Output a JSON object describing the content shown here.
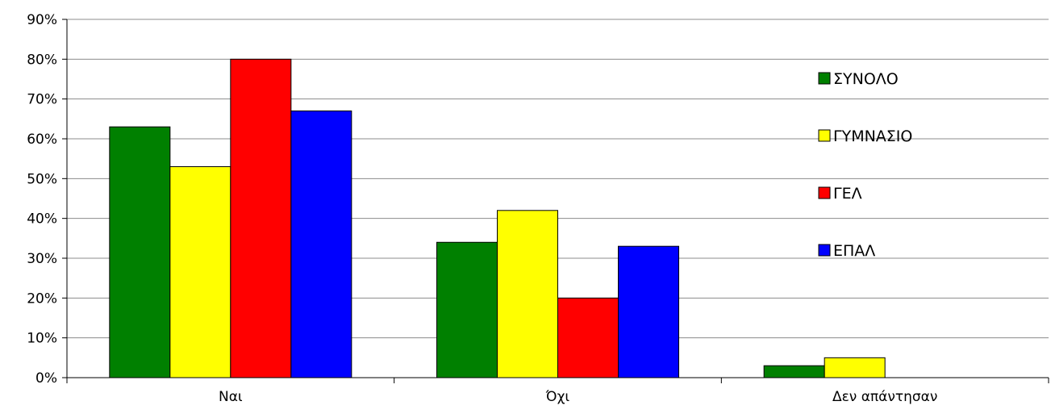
{
  "chart_data": {
    "type": "bar",
    "title": "",
    "xlabel": "",
    "ylabel": "",
    "categories": [
      "Ναι",
      "Όχι",
      "Δεν απάντησαν"
    ],
    "series": [
      {
        "name": "ΣΥΝΟΛΟ",
        "color": "#008000",
        "values": [
          63,
          34,
          3
        ]
      },
      {
        "name": "ΓΥΜΝΑΣΙΟ",
        "color": "#FFFF00",
        "values": [
          53,
          42,
          5
        ]
      },
      {
        "name": "ΓΕΛ",
        "color": "#FF0000",
        "values": [
          80,
          20,
          0
        ]
      },
      {
        "name": "ΕΠΑΛ",
        "color": "#0000FF",
        "values": [
          67,
          33,
          0
        ]
      }
    ],
    "ylim": [
      0,
      90
    ],
    "yticks": [
      "0%",
      "10%",
      "20%",
      "30%",
      "40%",
      "50%",
      "60%",
      "70%",
      "80%",
      "90%"
    ],
    "grid": true,
    "legend": "right"
  }
}
